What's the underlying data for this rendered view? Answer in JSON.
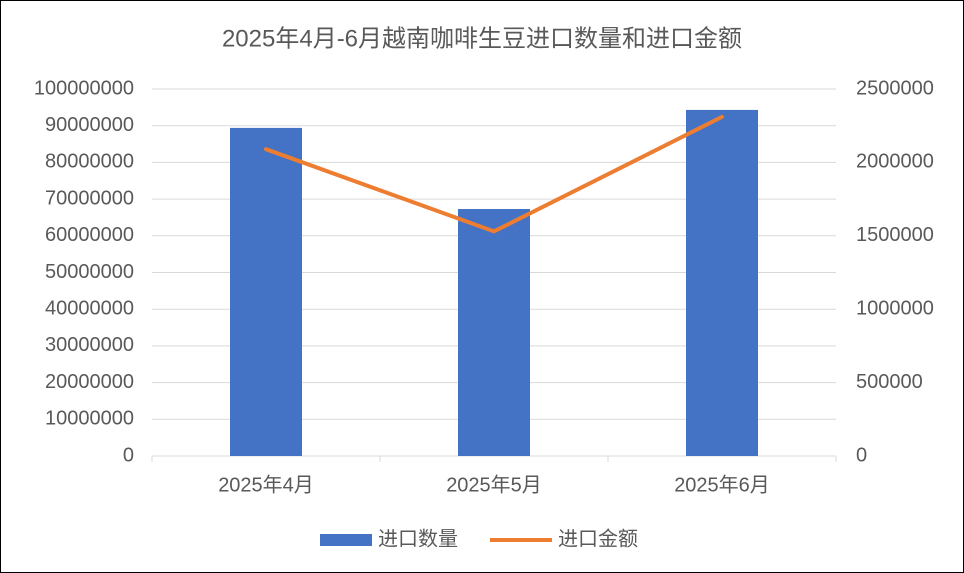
{
  "chart_data": {
    "type": "bar",
    "title": "2025年4月-6月越南咖啡生豆进口数量和进口金额",
    "categories": [
      "2025年4月",
      "2025年5月",
      "2025年6月"
    ],
    "series": [
      {
        "name": "进口数量",
        "type": "bar",
        "color": "#4472c4",
        "values": [
          89400000,
          67300000,
          94300000
        ]
      },
      {
        "name": "进口金额",
        "type": "line",
        "axis": "y2",
        "color": "#ed7d31",
        "values": [
          2090000,
          1530000,
          2310000
        ]
      }
    ],
    "ylim": [
      0,
      100000000
    ],
    "yticks": [
      0,
      10000000,
      20000000,
      30000000,
      40000000,
      50000000,
      60000000,
      70000000,
      80000000,
      90000000,
      100000000
    ],
    "y2lim": [
      0,
      2500000
    ],
    "y2ticks": [
      0,
      500000,
      1000000,
      1500000,
      2000000,
      2500000
    ],
    "grid": true,
    "legend": "bottom"
  }
}
